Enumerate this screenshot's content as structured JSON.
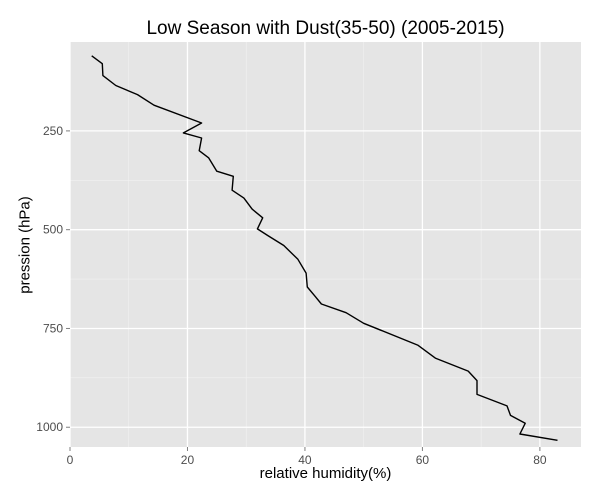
{
  "chart_data": {
    "type": "line",
    "title": "Low Season with Dust(35-50) (2005-2015)",
    "xlabel": "relative humidity(%)",
    "ylabel": "pression (hPa)",
    "xlim": [
      0,
      87
    ],
    "ylim": [
      1050,
      25
    ],
    "y_reversed": true,
    "x_ticks": [
      0,
      20,
      40,
      60,
      80
    ],
    "y_ticks": [
      250,
      500,
      750,
      1000
    ],
    "grid": true,
    "background": "#e5e5e5",
    "gridline_color": "#ffffff",
    "line_color": "#000000",
    "series": [
      {
        "x": [
          3.7,
          5.5,
          5.6,
          7.8,
          11.5,
          14.3,
          22.4,
          19.3,
          22.4,
          22.0,
          23.6,
          25.0,
          27.8,
          27.6,
          29.6,
          31.0,
          32.8,
          31.9,
          33.7,
          36.4,
          38.8,
          40.2,
          40.4,
          41.7,
          42.8,
          47.0,
          50.0,
          59.2,
          62.2,
          67.8,
          69.3,
          69.3,
          74.4,
          75.0,
          77.5,
          76.6,
          83.0
        ],
        "y": [
          60,
          80,
          110,
          135,
          158,
          185,
          230,
          255,
          268,
          300,
          318,
          352,
          365,
          400,
          420,
          448,
          470,
          498,
          515,
          540,
          575,
          610,
          645,
          668,
          688,
          710,
          737,
          792,
          825,
          858,
          882,
          917,
          946,
          970,
          990,
          1017,
          1033
        ]
      }
    ]
  }
}
